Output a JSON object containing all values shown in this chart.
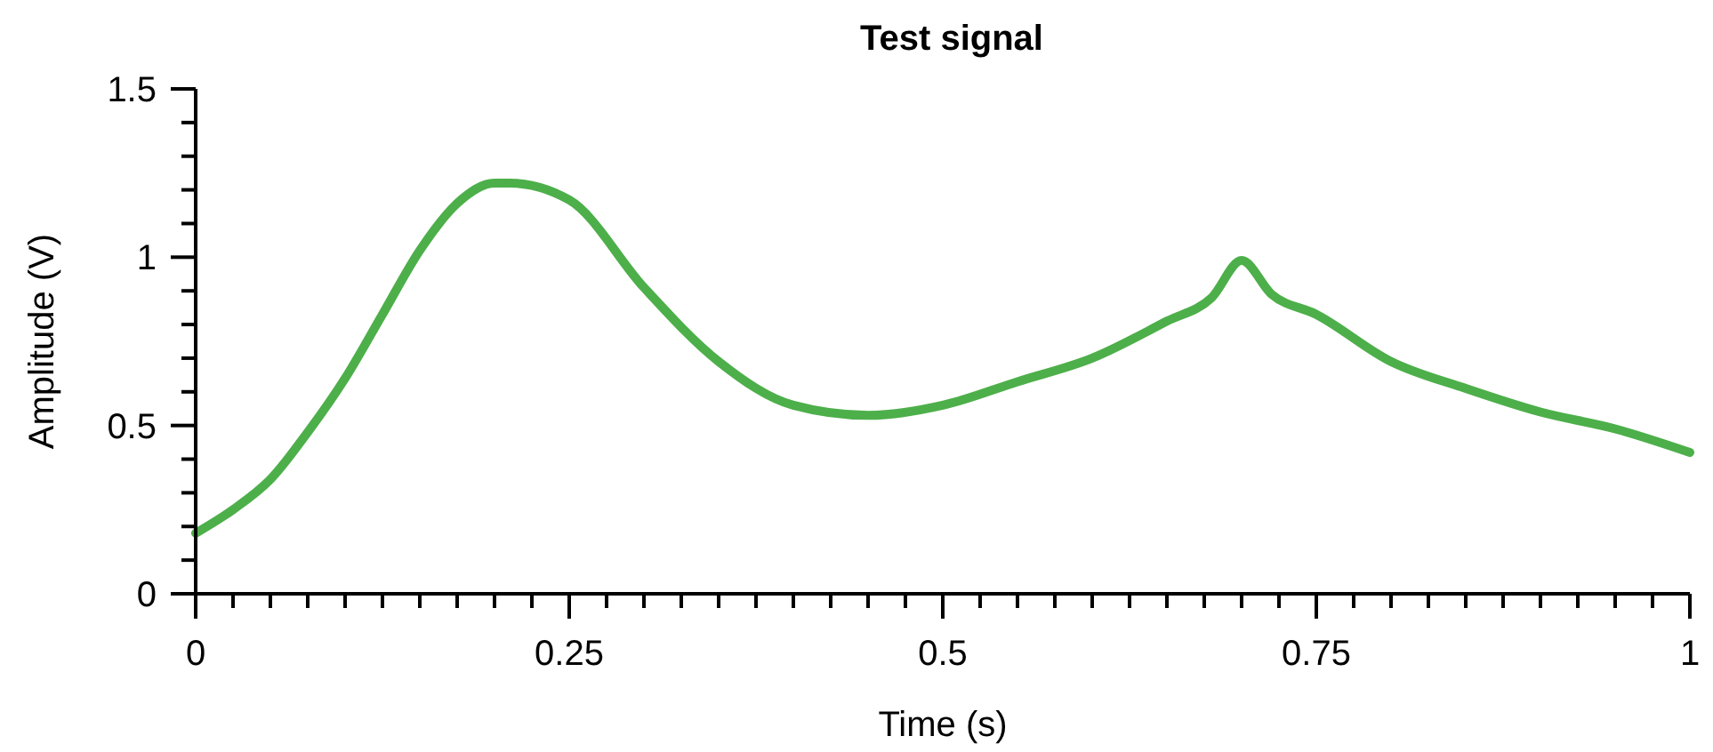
{
  "chart_data": {
    "type": "line",
    "title": "Test signal",
    "xlabel": "Time (s)",
    "ylabel": "Amplitude (V)",
    "xlim": [
      0,
      1
    ],
    "ylim": [
      0,
      1.5
    ],
    "xticks": [
      0,
      {
        "value": 0.025,
        "label": null
      },
      {
        "value": 0.05,
        "label": null
      },
      {
        "value": 0.075,
        "label": null
      },
      {
        "value": 0.1,
        "label": null
      },
      {
        "value": 0.125,
        "label": null
      },
      {
        "value": 0.15,
        "label": null
      },
      {
        "value": 0.175,
        "label": null
      },
      {
        "value": 0.2,
        "label": null
      },
      {
        "value": 0.225,
        "label": null
      },
      0.25,
      {
        "value": 0.275,
        "label": null
      },
      {
        "value": 0.3,
        "label": null
      },
      {
        "value": 0.325,
        "label": null
      },
      {
        "value": 0.35,
        "label": null
      },
      {
        "value": 0.375,
        "label": null
      },
      {
        "value": 0.4,
        "label": null
      },
      {
        "value": 0.425,
        "label": null
      },
      {
        "value": 0.45,
        "label": null
      },
      {
        "value": 0.475,
        "label": null
      },
      0.5,
      {
        "value": 0.525,
        "label": null
      },
      {
        "value": 0.55,
        "label": null
      },
      {
        "value": 0.575,
        "label": null
      },
      {
        "value": 0.6,
        "label": null
      },
      {
        "value": 0.625,
        "label": null
      },
      {
        "value": 0.65,
        "label": null
      },
      {
        "value": 0.675,
        "label": null
      },
      {
        "value": 0.7,
        "label": null
      },
      {
        "value": 0.725,
        "label": null
      },
      0.75,
      {
        "value": 0.775,
        "label": null
      },
      {
        "value": 0.8,
        "label": null
      },
      {
        "value": 0.825,
        "label": null
      },
      {
        "value": 0.85,
        "label": null
      },
      {
        "value": 0.875,
        "label": null
      },
      {
        "value": 0.9,
        "label": null
      },
      {
        "value": 0.925,
        "label": null
      },
      {
        "value": 0.95,
        "label": null
      },
      {
        "value": 0.975,
        "label": null
      },
      1
    ],
    "yticks": [
      0,
      {
        "value": 0.1,
        "label": null
      },
      {
        "value": 0.2,
        "label": null
      },
      {
        "value": 0.3,
        "label": null
      },
      {
        "value": 0.4,
        "label": null
      },
      0.5,
      {
        "value": 0.6,
        "label": null
      },
      {
        "value": 0.7,
        "label": null
      },
      {
        "value": 0.8,
        "label": null
      },
      {
        "value": 0.9,
        "label": null
      },
      1,
      {
        "value": 1.1,
        "label": null
      },
      {
        "value": 1.2,
        "label": null
      },
      {
        "value": 1.3,
        "label": null
      },
      {
        "value": 1.4,
        "label": null
      },
      1.5
    ],
    "x": [
      0,
      0.025,
      0.05,
      0.075,
      0.1,
      0.125,
      0.15,
      0.175,
      0.2,
      0.21,
      0.25,
      0.3,
      0.35,
      0.4,
      0.45,
      0.5,
      0.55,
      0.6,
      0.65,
      0.68,
      0.7,
      0.72,
      0.75,
      0.8,
      0.85,
      0.9,
      0.95,
      1
    ],
    "series": [
      {
        "color": "#4daf4a",
        "values": [
          0.18,
          0.25,
          0.34,
          0.48,
          0.64,
          0.83,
          1.02,
          1.16,
          1.22,
          1.22,
          1.17,
          0.91,
          0.69,
          0.56,
          0.53,
          0.56,
          0.63,
          0.7,
          0.81,
          0.88,
          0.99,
          0.89,
          0.83,
          0.69,
          0.61,
          0.54,
          0.49,
          0.42
        ]
      }
    ],
    "grid": false,
    "marker": "none",
    "line_style": "solid"
  }
}
